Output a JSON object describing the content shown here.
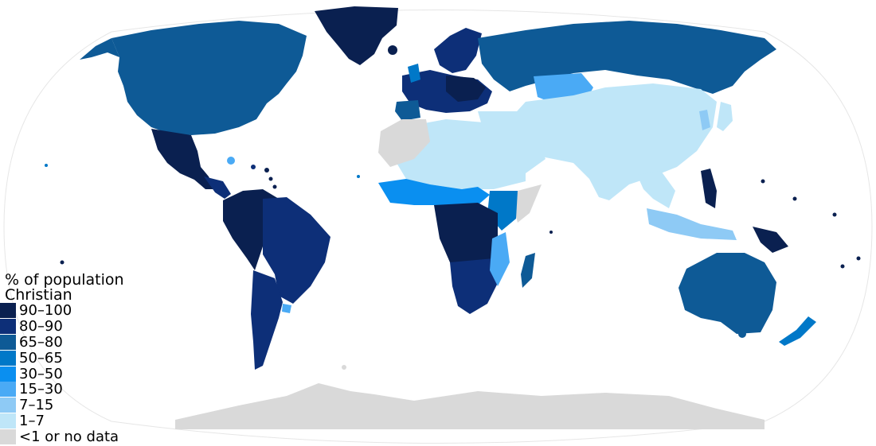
{
  "legend": {
    "title_line1": "% of population",
    "title_line2": "Christian",
    "items": [
      {
        "label": "90–100",
        "color": "#0a2050"
      },
      {
        "label": "80–90",
        "color": "#0d2f78"
      },
      {
        "label": "65–80",
        "color": "#0e5a96"
      },
      {
        "label": "50–65",
        "color": "#0078c8"
      },
      {
        "label": "30–50",
        "color": "#0a8ff0"
      },
      {
        "label": "15–30",
        "color": "#4aaaf5"
      },
      {
        "label": "7–15",
        "color": "#8ecaf5"
      },
      {
        "label": "1–7",
        "color": "#bfe6f8"
      },
      {
        "label": "<1 or no data",
        "color": "#d9d9d9"
      }
    ]
  }
}
